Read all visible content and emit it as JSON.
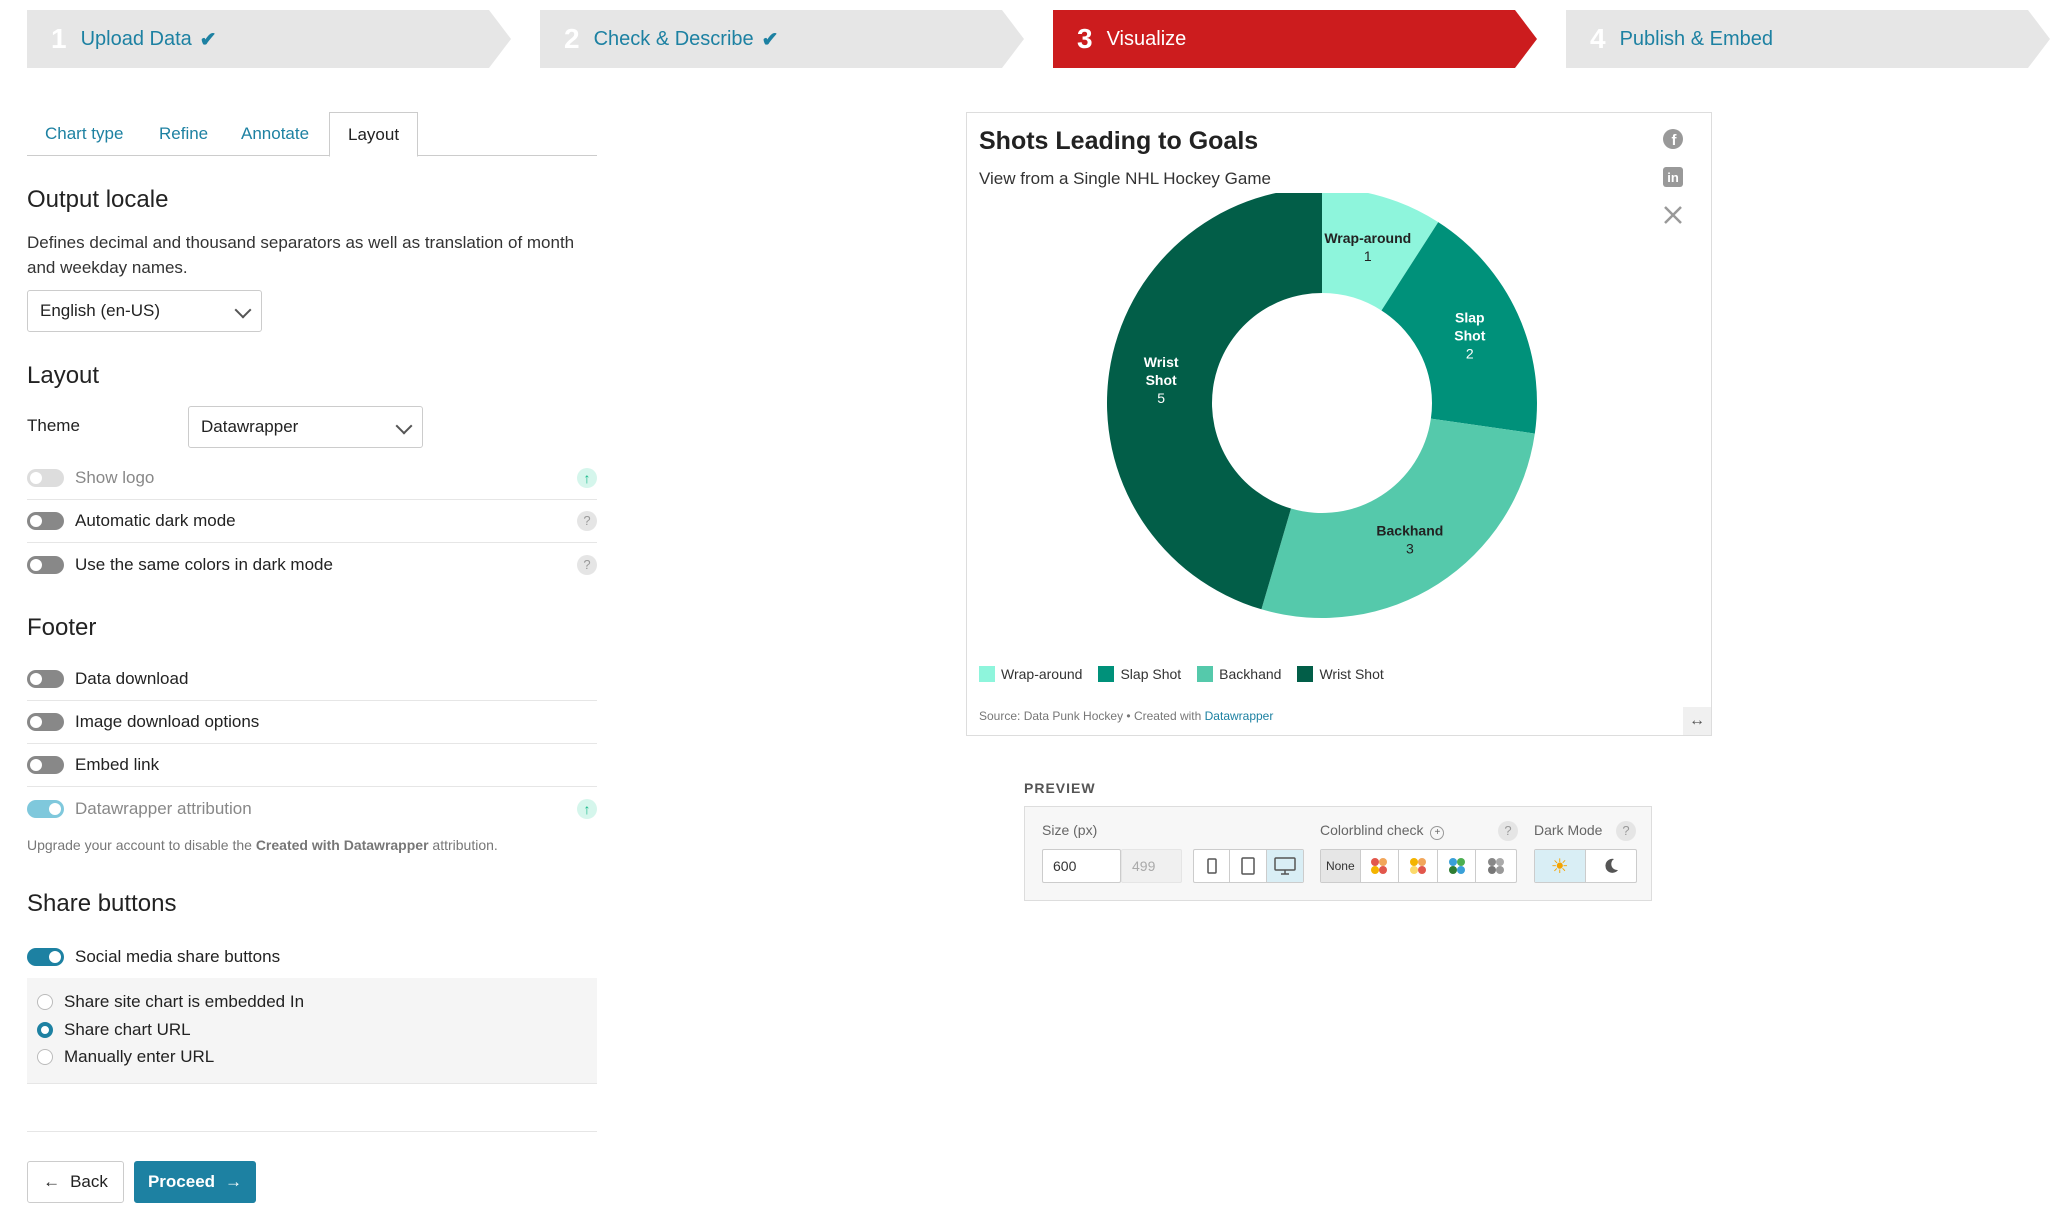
{
  "steps": [
    {
      "num": "1",
      "label": "Upload Data",
      "done": true
    },
    {
      "num": "2",
      "label": "Check & Describe",
      "done": true
    },
    {
      "num": "3",
      "label": "Visualize",
      "done": false
    },
    {
      "num": "4",
      "label": "Publish & Embed",
      "done": false
    }
  ],
  "tabs": [
    "Chart type",
    "Refine",
    "Annotate",
    "Layout"
  ],
  "locale": {
    "heading": "Output locale",
    "description": "Defines decimal and thousand separators as well as translation of month and weekday names.",
    "value": "English (en-US)"
  },
  "layout": {
    "heading": "Layout",
    "theme_label": "Theme",
    "theme_value": "Datawrapper",
    "show_logo": "Show logo",
    "auto_dark": "Automatic dark mode",
    "same_colors": "Use the same colors in dark mode"
  },
  "footer": {
    "heading": "Footer",
    "data_download": "Data download",
    "image_download": "Image download options",
    "embed_link": "Embed link",
    "attribution": "Datawrapper attribution",
    "upgrade_pre": "Upgrade your account to disable the ",
    "upgrade_bold": "Created with Datawrapper",
    "upgrade_post": " attribution."
  },
  "share": {
    "heading": "Share buttons",
    "toggle_label": "Social media share buttons",
    "options": [
      "Share site chart is embedded In",
      "Share chart URL",
      "Manually enter URL"
    ],
    "selected": 1
  },
  "nav": {
    "back": "Back",
    "proceed": "Proceed"
  },
  "chart": {
    "title": "Shots Leading to Goals",
    "subtitle": "View from a Single NHL Hockey Game",
    "source_text": "Source: Data Punk Hockey • Created with ",
    "source_link": "Datawrapper"
  },
  "chart_data": {
    "type": "pie",
    "title": "Shots Leading to Goals",
    "subtitle": "View from a Single NHL Hockey Game",
    "categories": [
      "Wrap-around",
      "Slap Shot",
      "Backhand",
      "Wrist Shot"
    ],
    "values": [
      1,
      2,
      3,
      5
    ],
    "colors": [
      "#8ef5dc",
      "#00917a",
      "#55c9ab",
      "#025e48"
    ],
    "donut": true,
    "legend": "bottom-left"
  },
  "preview": {
    "heading": "PREVIEW",
    "size_label": "Size (px)",
    "width": "600",
    "height": "499",
    "colorblind_label": "Colorblind check",
    "none_label": "None",
    "dark_label": "Dark Mode"
  }
}
